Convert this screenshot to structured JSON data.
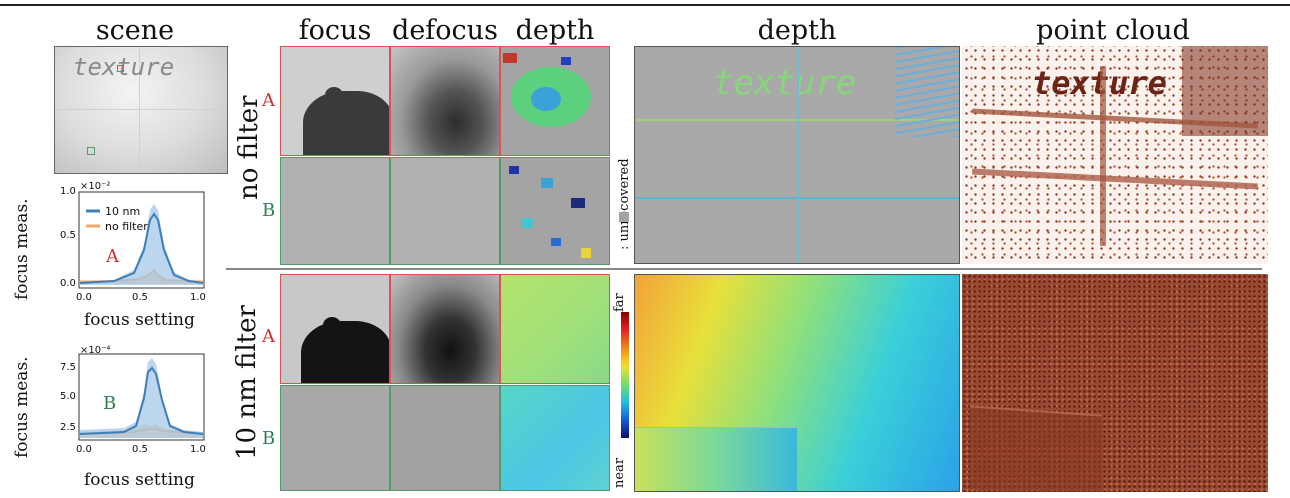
{
  "headers": {
    "scene": "scene",
    "focus": "focus",
    "defocus": "defocus",
    "depth_small": "depth",
    "depth_large": "depth",
    "point_cloud": "point cloud"
  },
  "scene_text": "texture",
  "rows": {
    "no_filter": "no filter",
    "nm_filter": "10 nm filter",
    "a": "A",
    "b": "B"
  },
  "legend": {
    "unrecovered": ": unrecovered",
    "far": "far",
    "near": "near"
  },
  "plots": {
    "xlabel": "focus setting",
    "ylabel": "focus meas.",
    "plot_a": {
      "label": "A",
      "multiplier": "×10⁻²",
      "yticks": [
        "0.0",
        "0.5",
        "1.0"
      ],
      "xticks": [
        "0.0",
        "0.5",
        "1.0"
      ],
      "legend_10nm": "10 nm",
      "legend_nofilter": "no filter"
    },
    "plot_b": {
      "label": "B",
      "multiplier": "×10⁻⁴",
      "yticks": [
        "2.5",
        "5.0",
        "7.5"
      ],
      "xticks": [
        "0.0",
        "0.5",
        "1.0"
      ]
    }
  },
  "colors": {
    "blue": "#3c7fb9",
    "orange": "#f0a866",
    "red_border": "#d9534f",
    "green_border": "#4f9a6a",
    "point_cloud": "#8b3a22"
  }
}
